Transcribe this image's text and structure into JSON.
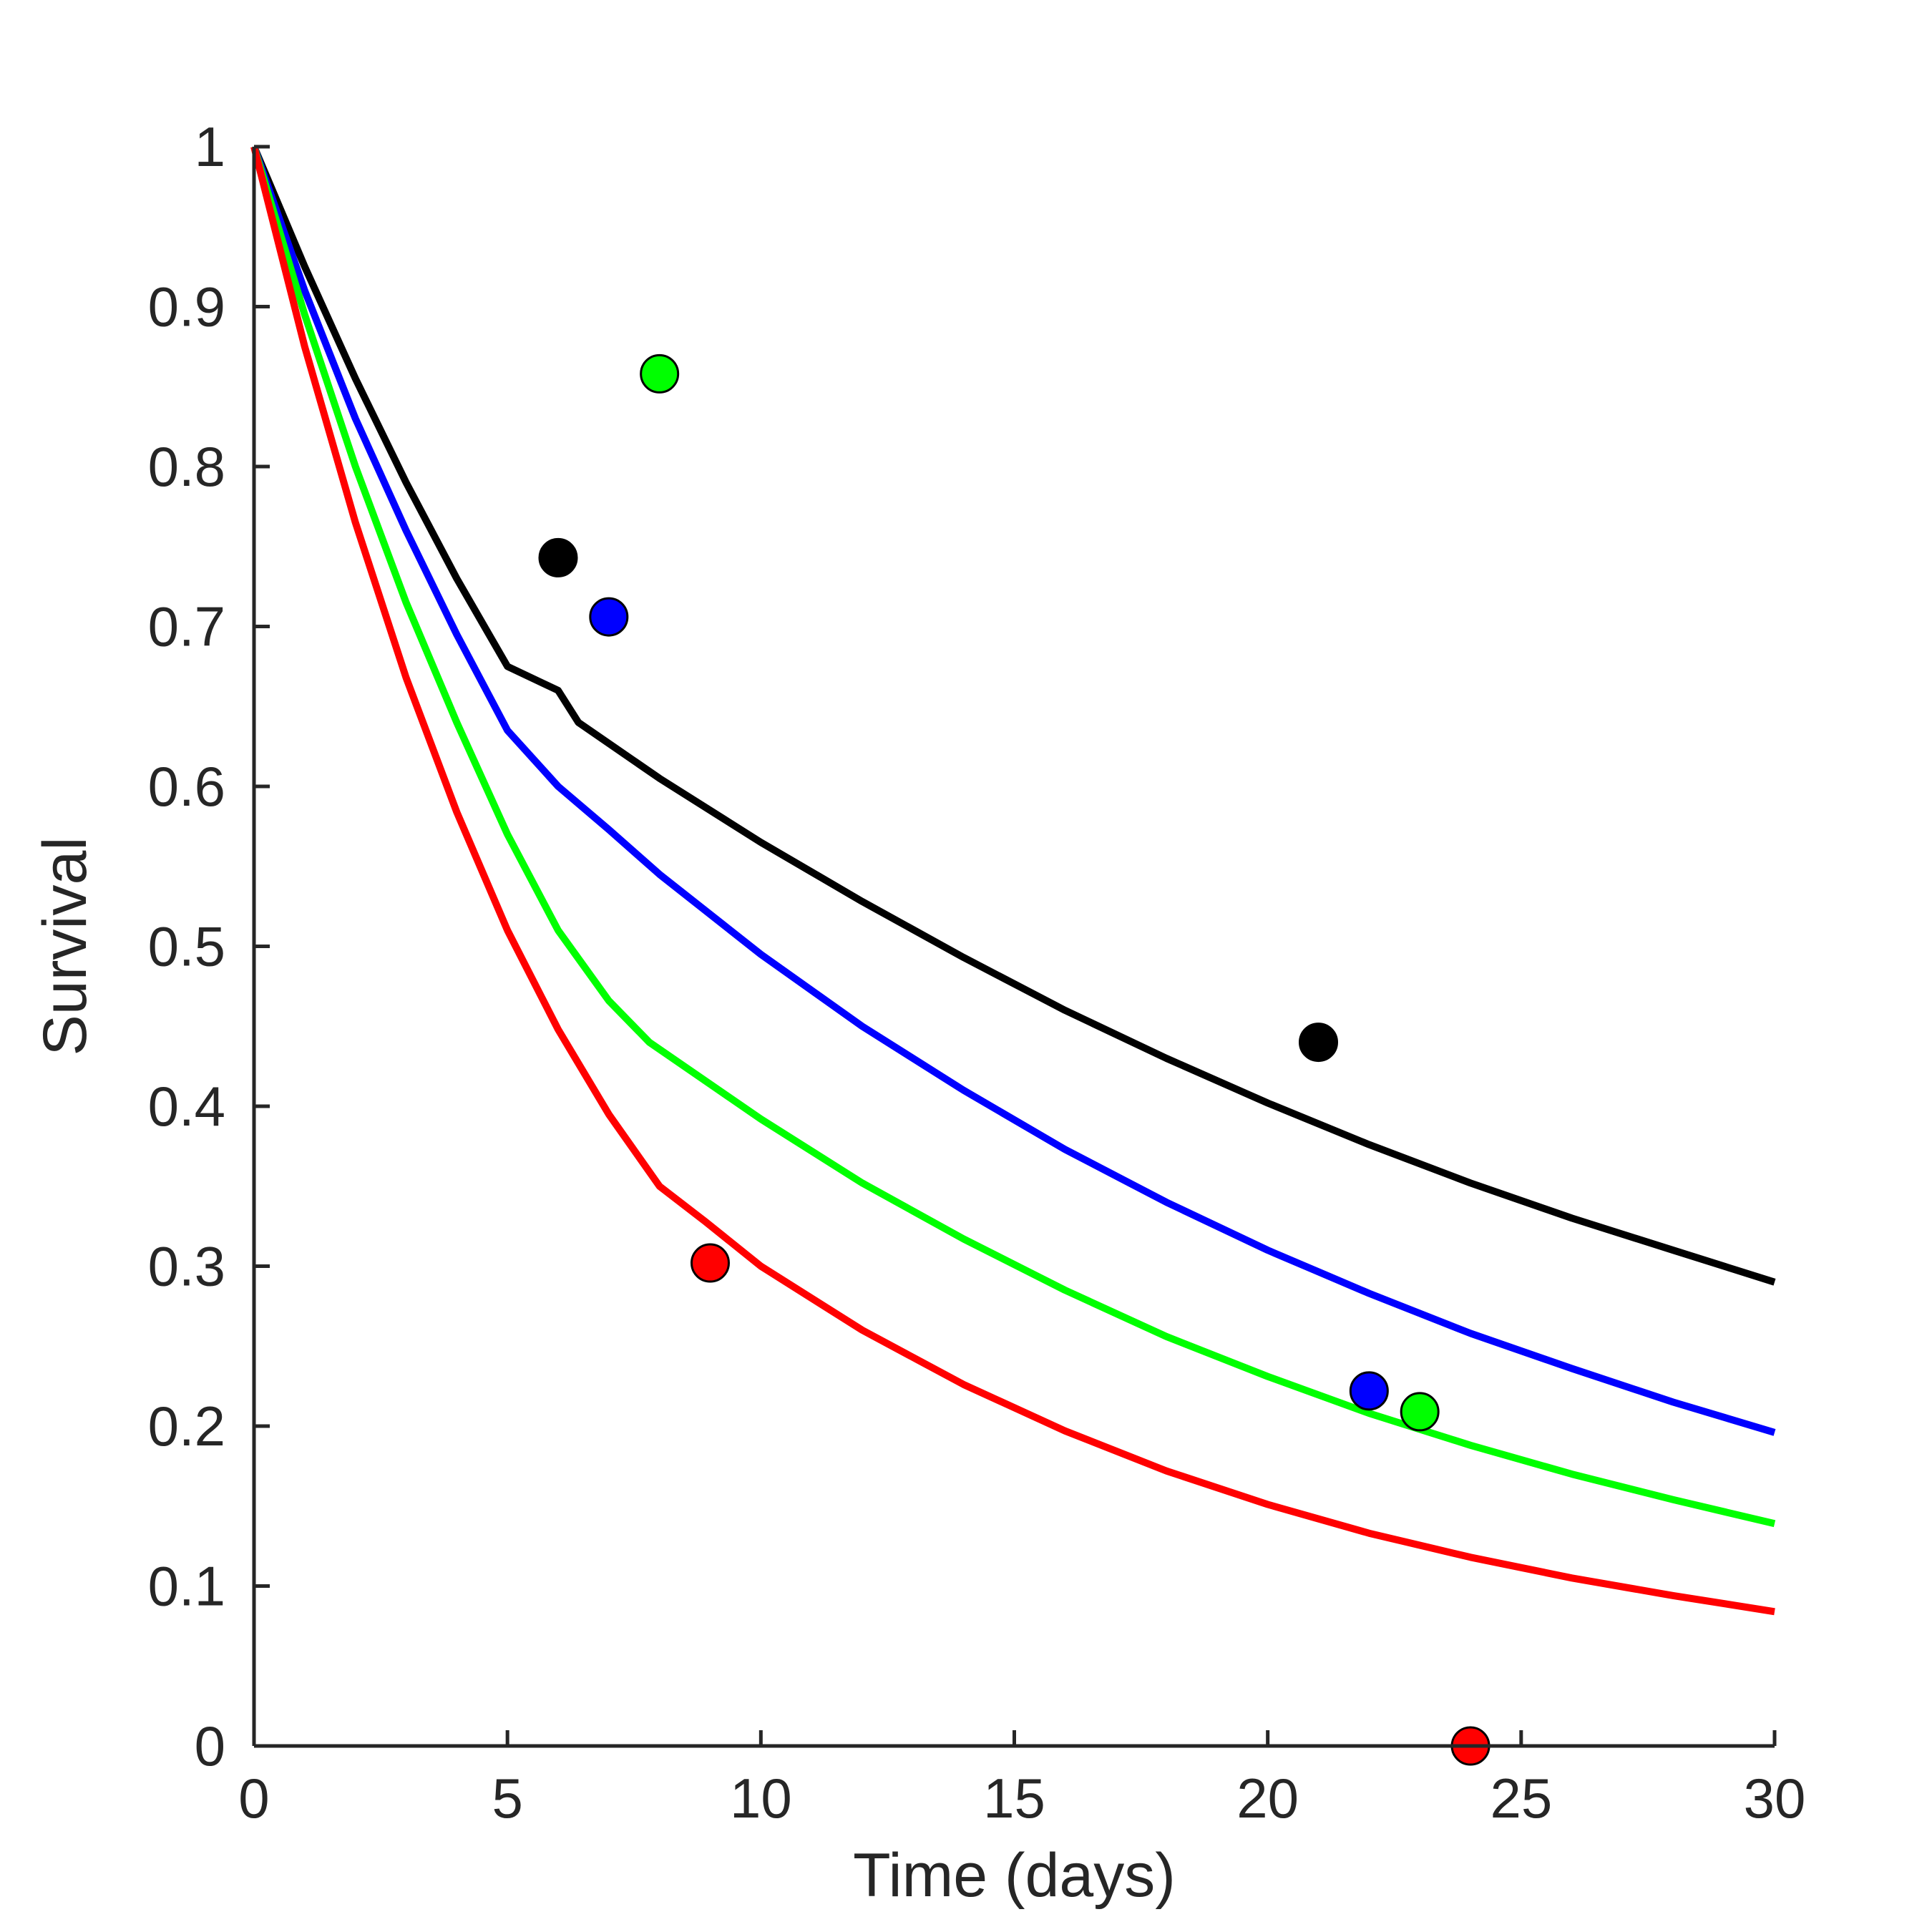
{
  "chart_data": {
    "type": "line",
    "title": "",
    "xlabel": "Time (days)",
    "ylabel": "Survival",
    "xlim": [
      0,
      30
    ],
    "ylim": [
      0,
      1
    ],
    "xticks": [
      0,
      5,
      10,
      15,
      20,
      25,
      30
    ],
    "yticks": [
      0,
      0.1,
      0.2,
      0.3,
      0.4,
      0.5,
      0.6,
      0.7,
      0.8,
      0.9,
      1
    ],
    "xtick_labels": [
      "0",
      "5",
      "10",
      "15",
      "20",
      "25",
      "30"
    ],
    "ytick_labels": [
      "0",
      "0.1",
      "0.2",
      "0.3",
      "0.4",
      "0.5",
      "0.6",
      "0.7",
      "0.8",
      "0.9",
      "1"
    ],
    "grid": false,
    "legend": "none",
    "series": [
      {
        "color": "#000000",
        "x": [
          0,
          1,
          2,
          3,
          4,
          5,
          6,
          6.4,
          8,
          10,
          12,
          14,
          16,
          18,
          20,
          22,
          24,
          26,
          28,
          30
        ],
        "y": [
          1,
          0.925,
          0.855,
          0.79,
          0.73,
          0.675,
          0.66,
          0.64,
          0.605,
          0.565,
          0.528,
          0.493,
          0.46,
          0.43,
          0.402,
          0.376,
          0.352,
          0.33,
          0.31,
          0.29
        ],
        "points": [
          {
            "x": 6,
            "y": 0.743
          },
          {
            "x": 21,
            "y": 0.44
          }
        ]
      },
      {
        "color": "#0000FF",
        "x": [
          0,
          1,
          2,
          3,
          4,
          5,
          6,
          7,
          8,
          10,
          12,
          14,
          16,
          18,
          20,
          22,
          24,
          26,
          28,
          30
        ],
        "y": [
          1,
          0.91,
          0.83,
          0.76,
          0.695,
          0.635,
          0.6,
          0.573,
          0.545,
          0.495,
          0.45,
          0.41,
          0.373,
          0.34,
          0.31,
          0.283,
          0.258,
          0.236,
          0.215,
          0.196
        ],
        "points": [
          {
            "x": 7,
            "y": 0.706
          },
          {
            "x": 22,
            "y": 0.222
          }
        ]
      },
      {
        "color": "#00FF00",
        "x": [
          0,
          1,
          2,
          3,
          4,
          5,
          6,
          7,
          7.8,
          10,
          12,
          14,
          16,
          18,
          20,
          22,
          24,
          26,
          28,
          30
        ],
        "y": [
          1,
          0.895,
          0.8,
          0.715,
          0.64,
          0.57,
          0.51,
          0.466,
          0.44,
          0.392,
          0.352,
          0.317,
          0.285,
          0.256,
          0.231,
          0.208,
          0.188,
          0.17,
          0.154,
          0.139
        ],
        "points": [
          {
            "x": 8,
            "y": 0.858
          },
          {
            "x": 23,
            "y": 0.209
          }
        ]
      },
      {
        "color": "#FF0000",
        "x": [
          0,
          1,
          2,
          3,
          4,
          5,
          6,
          7,
          8,
          8.9,
          10,
          12,
          14,
          16,
          18,
          20,
          22,
          24,
          26,
          28,
          30
        ],
        "y": [
          1,
          0.875,
          0.765,
          0.668,
          0.584,
          0.51,
          0.448,
          0.395,
          0.35,
          0.328,
          0.3,
          0.26,
          0.226,
          0.197,
          0.172,
          0.151,
          0.133,
          0.118,
          0.105,
          0.094,
          0.084
        ],
        "points": [
          {
            "x": 9,
            "y": 0.302
          },
          {
            "x": 24,
            "y": 0.0
          }
        ]
      }
    ]
  }
}
